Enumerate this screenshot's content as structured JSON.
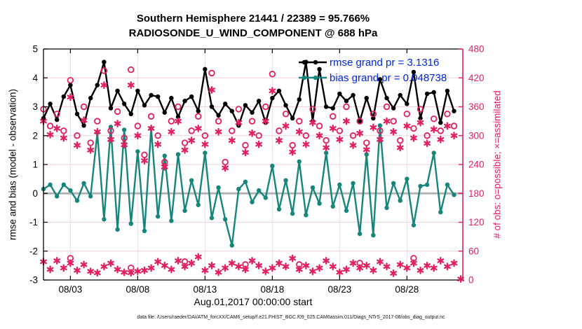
{
  "title": {
    "line1": "Southern Hemisphere 21441 / 22389 = 95.766%",
    "line2": "RADIOSONDE_U_WIND_COMPONENT @ 688 hPa"
  },
  "legend": {
    "rmse_label": "rmse grand pr = 3.1316",
    "bias_label": "bias grand pr = 0.048738",
    "text_color": "#0028e0"
  },
  "footer": "data file: /Users/raeder/DAI/ATM_forcXX/CAM6_setup/f.e21.FHIST_BGC.f09_025.CAM6assim.011/Diags_NTrS_2017-08/obs_diag_output.nc",
  "colors": {
    "rmse": "#000000",
    "bias": "#16857c",
    "counts": "#e0205f",
    "grid_h": "#f2d0d9",
    "grid_v": "#e2e2e2",
    "zero_line": "#b3b3b3",
    "spine": "#000000"
  },
  "chart_data": {
    "type": "line",
    "title": "Southern Hemisphere 21441 / 22389 = 95.766% | RADIOSONDE_U_WIND_COMPONENT @ 688 hPa",
    "bin_hours": 12,
    "x_axis": {
      "label": "Aug.01,2017 00:00:00 start",
      "tick_days": [
        2,
        7,
        12,
        17,
        22,
        27
      ],
      "tick_labels": [
        "08/03",
        "08/08",
        "08/13",
        "08/18",
        "08/23",
        "08/28"
      ],
      "range_days": [
        0,
        31.15
      ]
    },
    "y_left": {
      "label": "rmse and bias (model - observation)",
      "tick_values": [
        5,
        4,
        3,
        2,
        1,
        0,
        -1,
        -2,
        -3
      ],
      "tick_labels": [
        "5",
        "4",
        "3",
        "2",
        "1",
        "0",
        "-1",
        "-2",
        "-3"
      ],
      "range": [
        -3,
        5
      ],
      "zero_line": 0
    },
    "y_right": {
      "label": "# of obs: o=possible; ×=assimilated",
      "tick_values": [
        480,
        420,
        360,
        300,
        240,
        180,
        120,
        60,
        0
      ],
      "tick_labels": [
        "480",
        "420",
        "360",
        "300",
        "240",
        "180",
        "120",
        "60",
        "0"
      ],
      "range": [
        0,
        480
      ]
    },
    "grand_stats": {
      "rmse_grand_prior": 3.1316,
      "bias_grand_prior": 0.048738,
      "possible_total": 22389,
      "assimilated_total": 21441,
      "assimilated_pct": 95.766
    },
    "series": [
      {
        "name": "rmse",
        "axis": "left",
        "marker": "filled-circle",
        "values": [
          2.6,
          3.1,
          2.55,
          3.35,
          3.75,
          2.75,
          2.35,
          3.3,
          3.75,
          4.55,
          2.95,
          3.55,
          3.1,
          2.75,
          3.55,
          3.05,
          3.4,
          3.35,
          2.8,
          3.3,
          2.65,
          3.2,
          3.35,
          2.85,
          4.3,
          3.0,
          2.7,
          3.1,
          2.85,
          2.35,
          3.05,
          2.8,
          3.2,
          2.45,
          3.3,
          3.55,
          3.05,
          2.6,
          3.25,
          4.55,
          2.5,
          4.3,
          3.0,
          2.95,
          3.45,
          3.2,
          3.4,
          2.5,
          3.3,
          2.6,
          3.95,
          3.3,
          2.95,
          3.4,
          3.1,
          4.2,
          2.6,
          3.45,
          3.5,
          2.45,
          3.55,
          2.85
        ]
      },
      {
        "name": "bias",
        "axis": "left",
        "marker": "filled-circle",
        "values": [
          0.15,
          0.3,
          -0.1,
          0.3,
          0.1,
          -0.25,
          0.35,
          -0.1,
          2.1,
          -0.9,
          2.3,
          -1.25,
          2.2,
          -1.05,
          1.45,
          -1.3,
          2.25,
          -0.8,
          1.3,
          -0.95,
          1.35,
          -0.6,
          0.45,
          -0.4,
          1.4,
          -0.85,
          0.2,
          -0.9,
          -1.8,
          0.15,
          0.4,
          -0.3,
          0.1,
          -0.15,
          0.95,
          -0.55,
          0.45,
          -0.7,
          1.1,
          -0.75,
          0.2,
          -0.35,
          1.4,
          -0.45,
          0.3,
          -0.6,
          0.35,
          -1.4,
          1.35,
          -1.45,
          2.35,
          -0.5,
          0.35,
          -0.25,
          0.5,
          -1.1,
          0.25,
          0.3,
          1.4,
          -0.65,
          0.3,
          -0.05
        ]
      },
      {
        "name": "obs_possible",
        "axis": "right",
        "marker": "circle",
        "values": [
          355,
          320,
          345,
          310,
          415,
          300,
          360,
          285,
          330,
          435,
          310,
          350,
          295,
          437,
          320,
          260,
          340,
          300,
          245,
          330,
          360,
          285,
          310,
          340,
          300,
          430,
          330,
          245,
          310,
          355,
          280,
          330,
          300,
          360,
          428,
          310,
          345,
          280,
          330,
          300,
          355,
          320,
          290,
          340,
          310,
          360,
          300,
          330,
          285,
          345,
          310,
          360,
          330,
          290,
          345,
          315,
          355,
          300,
          335,
          310,
          345,
          320
        ]
      },
      {
        "name": "obs_assimilated",
        "axis": "right",
        "marker": "asterisk",
        "values": [
          330,
          302,
          315,
          295,
          380,
          280,
          332,
          270,
          308,
          405,
          292,
          325,
          281,
          405,
          300,
          248,
          315,
          282,
          235,
          308,
          330,
          270,
          290,
          315,
          282,
          395,
          308,
          233,
          290,
          327,
          265,
          305,
          282,
          330,
          393,
          290,
          320,
          266,
          308,
          282,
          327,
          300,
          275,
          315,
          292,
          330,
          280,
          305,
          271,
          317,
          292,
          330,
          308,
          275,
          320,
          295,
          327,
          284,
          313,
          292,
          320,
          300
        ]
      },
      {
        "name": "obs_low_band",
        "axis": "right",
        "marker": "asterisk",
        "circle_indices": [
          4,
          13,
          21,
          30,
          38,
          47,
          55
        ],
        "values": [
          38,
          22,
          40,
          25,
          35,
          20,
          32,
          18,
          15,
          28,
          35,
          22,
          16,
          15,
          18,
          20,
          25,
          38,
          30,
          22,
          40,
          28,
          35,
          48,
          20,
          30,
          16,
          25,
          35,
          28,
          22,
          40,
          30,
          18,
          25,
          35,
          28,
          45,
          22,
          30,
          18,
          25,
          40,
          28,
          16,
          22,
          35,
          25,
          30,
          20,
          38,
          28,
          14,
          32,
          25,
          35,
          20,
          30,
          25,
          40,
          28,
          35
        ]
      }
    ],
    "end_marker": {
      "name": "obs_end_zero",
      "axis": "right",
      "marker": "asterisk",
      "x_day": 31.0,
      "value": 2
    }
  }
}
